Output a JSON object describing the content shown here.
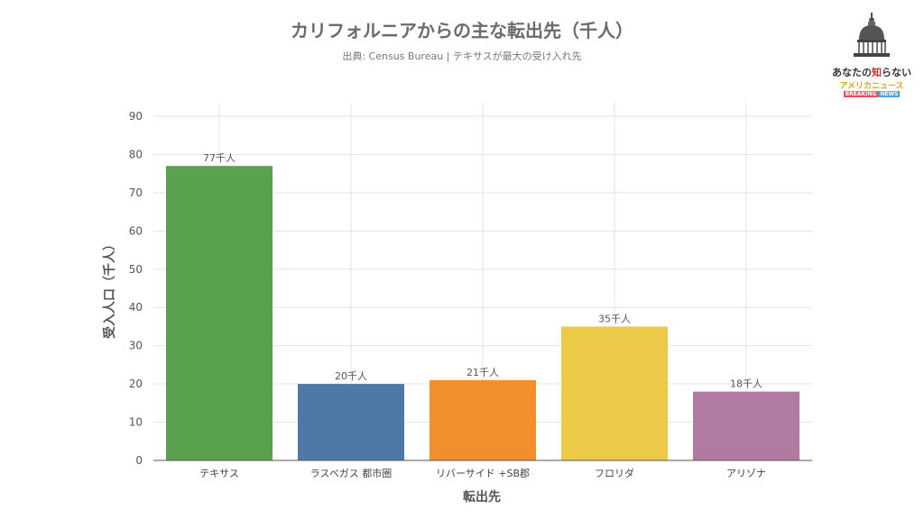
{
  "chart_data": {
    "type": "bar",
    "title": "カリフォルニアからの主な転出先（千人）",
    "subtitle": "出典: Census Bureau | テキサスが最大の受け入れ先",
    "xlabel": "転出先",
    "ylabel": "受入人口（千人）",
    "categories": [
      "テキサス",
      "ラスベガス 都市圏",
      "リバーサイド +SB郡",
      "フロリダ",
      "アリゾナ"
    ],
    "values": [
      77,
      20,
      21,
      35,
      18
    ],
    "data_labels": [
      "77千人",
      "20千人",
      "21千人",
      "35千人",
      "18千人"
    ],
    "colors": [
      "#59a14f",
      "#4e79a7",
      "#f28e2b",
      "#edc948",
      "#b07aa1"
    ],
    "ylim": [
      0,
      90
    ],
    "yticks": [
      0,
      10,
      20,
      30,
      40,
      50,
      60,
      70,
      80,
      90
    ],
    "grid": true,
    "legend": "none"
  },
  "logo": {
    "line1a": "あなたの",
    "line1b": "知",
    "line1c": "らない",
    "line2": "アメリカニュース",
    "tag1": "BREAKING",
    "tag2": "NEWS"
  }
}
